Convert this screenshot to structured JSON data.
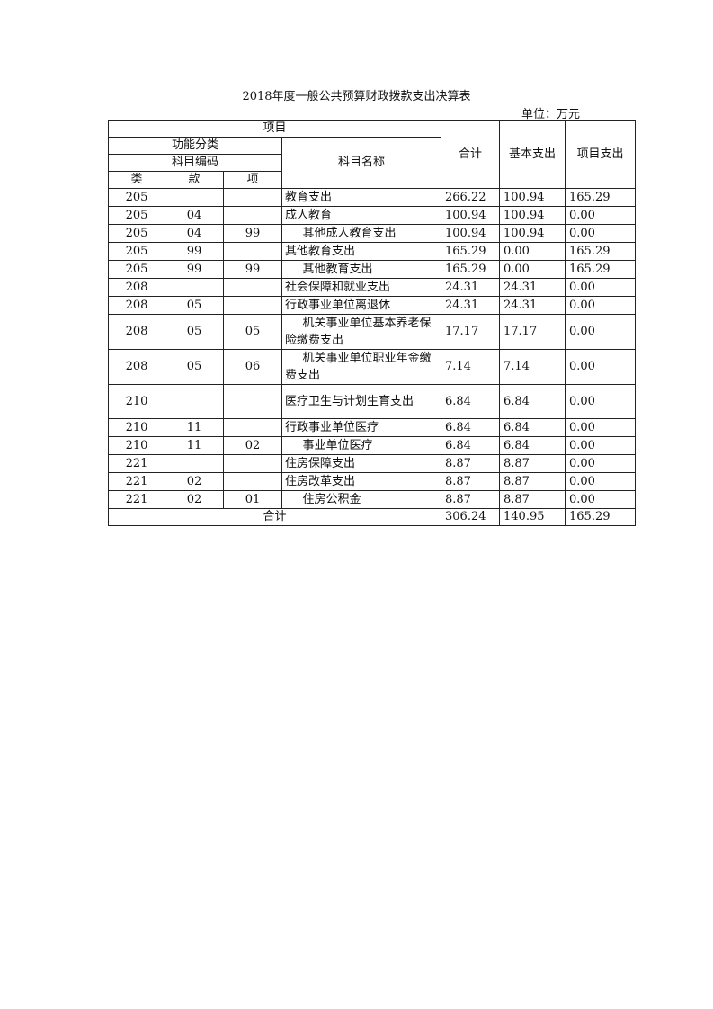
{
  "title": "2018年度一般公共预算财政拨款支出决算表",
  "unit": "单位：万元",
  "header": {
    "item": "项目",
    "func_class": "功能分类",
    "code": "科目编码",
    "lei": "类",
    "kuan": "款",
    "xiang": "项",
    "name": "科目名称",
    "total": "合计",
    "basic": "基本支出",
    "project": "项目支出"
  },
  "rows": [
    {
      "lei": "205",
      "kuan": "",
      "xiang": "",
      "name": "教育支出",
      "indent": false,
      "total": "266.22",
      "basic": "100.94",
      "project": "165.29"
    },
    {
      "lei": "205",
      "kuan": "04",
      "xiang": "",
      "name": "成人教育",
      "indent": false,
      "total": "100.94",
      "basic": "100.94",
      "project": "0.00"
    },
    {
      "lei": "205",
      "kuan": "04",
      "xiang": "99",
      "name": "其他成人教育支出",
      "indent": true,
      "total": "100.94",
      "basic": "100.94",
      "project": "0.00"
    },
    {
      "lei": "205",
      "kuan": "99",
      "xiang": "",
      "name": "其他教育支出",
      "indent": false,
      "total": "165.29",
      "basic": "0.00",
      "project": "165.29"
    },
    {
      "lei": "205",
      "kuan": "99",
      "xiang": "99",
      "name": "其他教育支出",
      "indent": true,
      "total": "165.29",
      "basic": "0.00",
      "project": "165.29"
    },
    {
      "lei": "208",
      "kuan": "",
      "xiang": "",
      "name": "社会保障和就业支出",
      "indent": false,
      "total": "24.31",
      "basic": "24.31",
      "project": "0.00"
    },
    {
      "lei": "208",
      "kuan": "05",
      "xiang": "",
      "name": "行政事业单位离退休",
      "indent": false,
      "total": "24.31",
      "basic": "24.31",
      "project": "0.00"
    },
    {
      "lei": "208",
      "kuan": "05",
      "xiang": "05",
      "name": "机关事业单位基本养老保险缴费支出",
      "indent": true,
      "tall": true,
      "total": "17.17",
      "basic": "17.17",
      "project": "0.00"
    },
    {
      "lei": "208",
      "kuan": "05",
      "xiang": "06",
      "name": "机关事业单位职业年金缴费支出",
      "indent": true,
      "tall": true,
      "total": "7.14",
      "basic": "7.14",
      "project": "0.00"
    },
    {
      "lei": "210",
      "kuan": "",
      "xiang": "",
      "name": "医疗卫生与计划生育支出",
      "indent": false,
      "tall": true,
      "total": "6.84",
      "basic": "6.84",
      "project": "0.00"
    },
    {
      "lei": "210",
      "kuan": "11",
      "xiang": "",
      "name": "行政事业单位医疗",
      "indent": false,
      "total": "6.84",
      "basic": "6.84",
      "project": "0.00"
    },
    {
      "lei": "210",
      "kuan": "11",
      "xiang": "02",
      "name": "事业单位医疗",
      "indent": true,
      "total": "6.84",
      "basic": "6.84",
      "project": "0.00"
    },
    {
      "lei": "221",
      "kuan": "",
      "xiang": "",
      "name": "住房保障支出",
      "indent": false,
      "total": "8.87",
      "basic": "8.87",
      "project": "0.00"
    },
    {
      "lei": "221",
      "kuan": "02",
      "xiang": "",
      "name": "住房改革支出",
      "indent": false,
      "total": "8.87",
      "basic": "8.87",
      "project": "0.00"
    },
    {
      "lei": "221",
      "kuan": "02",
      "xiang": "01",
      "name": "住房公积金",
      "indent": true,
      "total": "8.87",
      "basic": "8.87",
      "project": "0.00"
    }
  ],
  "footer": {
    "label": "合计",
    "total": "306.24",
    "basic": "140.95",
    "project": "165.29"
  }
}
